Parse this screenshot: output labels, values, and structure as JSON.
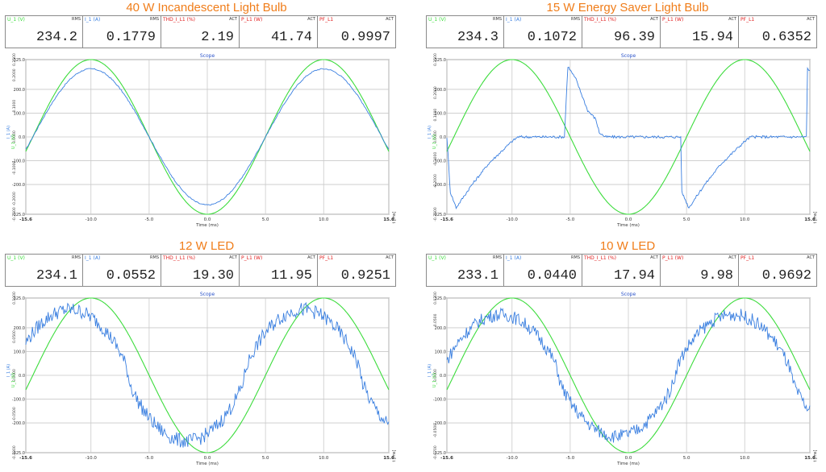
{
  "colors": {
    "title": "#f07d1a",
    "voltage": "#3ddc3d",
    "current": "#3a7fe0",
    "thd": "#e02020",
    "power": "#e02020",
    "pf": "#e02020",
    "grid": "#c9c9c9"
  },
  "scope_label": "Scope",
  "x_axis_label": "Time (ms)",
  "x_unit_label": "t [ms]",
  "y_left_label_i": "I_1 (A)",
  "y_left_label_u": "U_1 (V)",
  "panels": [
    {
      "title": "40 W Incandescent Light Bulb",
      "meters": [
        {
          "name": "U_1 (V)",
          "type": "RMS",
          "value": "234.2"
        },
        {
          "name": "I_1 (A)",
          "type": "RMS",
          "value": "0.1779"
        },
        {
          "name": "THD_I_L1 (%)",
          "type": "ACT",
          "value": "2.19"
        },
        {
          "name": "P_L1 (W)",
          "type": "ACT",
          "value": "41.74"
        },
        {
          "name": "PF_L1",
          "type": "ACT",
          "value": "0.9997"
        }
      ]
    },
    {
      "title": "15 W Energy Saver Light Bulb",
      "meters": [
        {
          "name": "U_1 (V)",
          "type": "RMS",
          "value": "234.3"
        },
        {
          "name": "I_1 (A)",
          "type": "RMS",
          "value": "0.1072"
        },
        {
          "name": "THD_I_L1 (%)",
          "type": "ACT",
          "value": "96.39"
        },
        {
          "name": "P_L1 (W)",
          "type": "ACT",
          "value": "15.94"
        },
        {
          "name": "PF_L1",
          "type": "ACT",
          "value": "0.6352"
        }
      ]
    },
    {
      "title": "12 W LED",
      "meters": [
        {
          "name": "U_1 (V)",
          "type": "RMS",
          "value": "234.1"
        },
        {
          "name": "I_1 (A)",
          "type": "RMS",
          "value": "0.0552"
        },
        {
          "name": "THD_I_L1 (%)",
          "type": "ACT",
          "value": "19.30"
        },
        {
          "name": "P_L1 (W)",
          "type": "ACT",
          "value": "11.95"
        },
        {
          "name": "PF_L1",
          "type": "ACT",
          "value": "0.9251"
        }
      ]
    },
    {
      "title": "10 W LED",
      "meters": [
        {
          "name": "U_1 (V)",
          "type": "RMS",
          "value": "233.1"
        },
        {
          "name": "I_1 (A)",
          "type": "RMS",
          "value": "0.0440"
        },
        {
          "name": "THD_I_L1 (%)",
          "type": "ACT",
          "value": "17.94"
        },
        {
          "name": "P_L1 (W)",
          "type": "ACT",
          "value": "9.98"
        },
        {
          "name": "PF_L1",
          "type": "ACT",
          "value": "0.9692"
        }
      ]
    }
  ],
  "chart_data": [
    {
      "type": "line",
      "title": "Scope",
      "xlabel": "Time (ms)",
      "xlim": [
        -15.6,
        15.6
      ],
      "x_ticks": [
        "-15.6",
        "-10.0",
        "-5.0",
        "0.0",
        "5.0",
        "10.0",
        "15.6"
      ],
      "y_left_ticks": [
        "-0.2500",
        "-0.2000",
        "-0.1000",
        "0.0000",
        "0.1000",
        "0.2000",
        "0.2500"
      ],
      "y_right_ticks": [
        "-325.0",
        "-200.0",
        "-100.0",
        "0.0",
        "100.0",
        "200.0",
        "325.0"
      ],
      "ylim_current": [
        -0.25,
        0.25
      ],
      "ylim_voltage": [
        -325,
        325
      ],
      "series": [
        {
          "name": "U_1 (V)",
          "axis": "voltage",
          "wave": "sine",
          "amplitude": 325
        },
        {
          "name": "I_1 (A)",
          "axis": "current",
          "wave": "sine",
          "amplitude": 0.22
        }
      ]
    },
    {
      "type": "line",
      "title": "Scope",
      "xlabel": "Time (ms)",
      "xlim": [
        -15.6,
        15.6
      ],
      "x_ticks": [
        "-15.6",
        "-10.0",
        "-5.0",
        "0.0",
        "5.0",
        "10.0",
        "15.6"
      ],
      "y_left_ticks": [
        "-0.3500",
        "-0.2000",
        "-0.1000",
        "0.0000",
        "0.1000",
        "0.2000",
        "0.3500"
      ],
      "y_right_ticks": [
        "-325.0",
        "-200.0",
        "-100.0",
        "0.0",
        "100.0",
        "200.0",
        "325.0"
      ],
      "ylim_current": [
        -0.35,
        0.35
      ],
      "ylim_voltage": [
        -325,
        325
      ],
      "series": [
        {
          "name": "U_1 (V)",
          "axis": "voltage",
          "wave": "sine",
          "amplitude": 325
        },
        {
          "name": "I_1 (A)",
          "axis": "current",
          "wave": "pulse",
          "points": [
            [
              -15.6,
              0.0
            ],
            [
              -15.3,
              -0.25
            ],
            [
              -14.8,
              -0.32
            ],
            [
              -13.5,
              -0.22
            ],
            [
              -12.0,
              -0.12
            ],
            [
              -10.0,
              -0.02
            ],
            [
              -9.5,
              0.0
            ],
            [
              -5.5,
              0.0
            ],
            [
              -5.2,
              0.32
            ],
            [
              -4.5,
              0.26
            ],
            [
              -3.5,
              0.12
            ],
            [
              -2.8,
              0.08
            ],
            [
              -2.5,
              0.02
            ],
            [
              -2.0,
              0.0
            ],
            [
              4.5,
              0.0
            ],
            [
              4.6,
              -0.25
            ],
            [
              5.2,
              -0.32
            ],
            [
              6.5,
              -0.22
            ],
            [
              8.0,
              -0.12
            ],
            [
              10.0,
              -0.02
            ],
            [
              10.5,
              0.0
            ],
            [
              15.3,
              0.0
            ],
            [
              15.4,
              0.31
            ],
            [
              15.6,
              0.3
            ]
          ]
        }
      ]
    },
    {
      "type": "line",
      "title": "Scope",
      "xlabel": "Time (ms)",
      "xlim": [
        -15.6,
        15.6
      ],
      "x_ticks": [
        "-15.6",
        "-10.0",
        "-5.0",
        "0.0",
        "5.0",
        "10.0",
        "15.6"
      ],
      "y_left_ticks": [
        "-0.1000",
        "-0.0500",
        "0.0000",
        "0.0500",
        "0.1000"
      ],
      "y_right_ticks": [
        "-325.0",
        "-200.0",
        "-100.0",
        "0.0",
        "100.0",
        "200.0",
        "325.0"
      ],
      "ylim_current": [
        -0.1,
        0.1
      ],
      "ylim_voltage": [
        -325,
        325
      ],
      "series": [
        {
          "name": "U_1 (V)",
          "axis": "voltage",
          "wave": "sine",
          "amplitude": 325
        },
        {
          "name": "I_1 (A)",
          "axis": "current",
          "wave": "noisy-sine",
          "amplitude": 0.085,
          "phase_ms": -1.8
        }
      ]
    },
    {
      "type": "line",
      "title": "Scope",
      "xlabel": "Time (ms)",
      "xlim": [
        -15.6,
        15.6
      ],
      "x_ticks": [
        "-15.6",
        "-10.0",
        "-5.0",
        "0.0",
        "5.0",
        "10.0",
        "15.6"
      ],
      "y_left_ticks": [
        "-0.0700",
        "-0.0500",
        "0.0000",
        "0.0500",
        "0.0700"
      ],
      "y_right_ticks": [
        "-325.0",
        "-200.0",
        "-100.0",
        "0.0",
        "100.0",
        "200.0",
        "325.0"
      ],
      "ylim_current": [
        -0.07,
        0.07
      ],
      "ylim_voltage": [
        -325,
        325
      ],
      "series": [
        {
          "name": "U_1 (V)",
          "axis": "voltage",
          "wave": "sine",
          "amplitude": 325
        },
        {
          "name": "I_1 (A)",
          "axis": "current",
          "wave": "noisy-sine",
          "amplitude": 0.055,
          "phase_ms": -1.0
        }
      ]
    }
  ]
}
